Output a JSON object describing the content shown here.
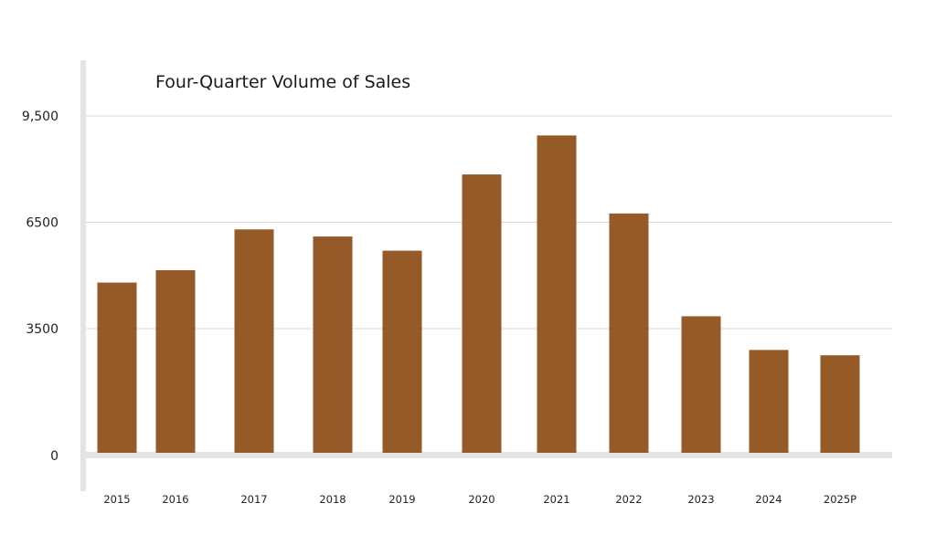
{
  "chart_data": {
    "type": "bar",
    "title": "Four-Quarter Volume of Sales",
    "xlabel": "",
    "ylabel": "",
    "categories": [
      "2015",
      "2016",
      "2017",
      "2018",
      "2019",
      "2020",
      "2021",
      "2022",
      "2023",
      "2024",
      "2025P"
    ],
    "values": [
      4800,
      5150,
      6300,
      6100,
      5700,
      7850,
      8950,
      6750,
      3850,
      2900,
      2750
    ],
    "y_ticks": [
      0,
      3500,
      6500,
      9500
    ],
    "y_tick_labels": [
      "0",
      "3500",
      "6500",
      "9,500"
    ],
    "ylim": [
      0,
      9500
    ],
    "grid": true,
    "legend": "none",
    "colors": {
      "bar": "#955a27",
      "grid": "#d9d9d9",
      "axis": "#e4e4e4"
    }
  }
}
